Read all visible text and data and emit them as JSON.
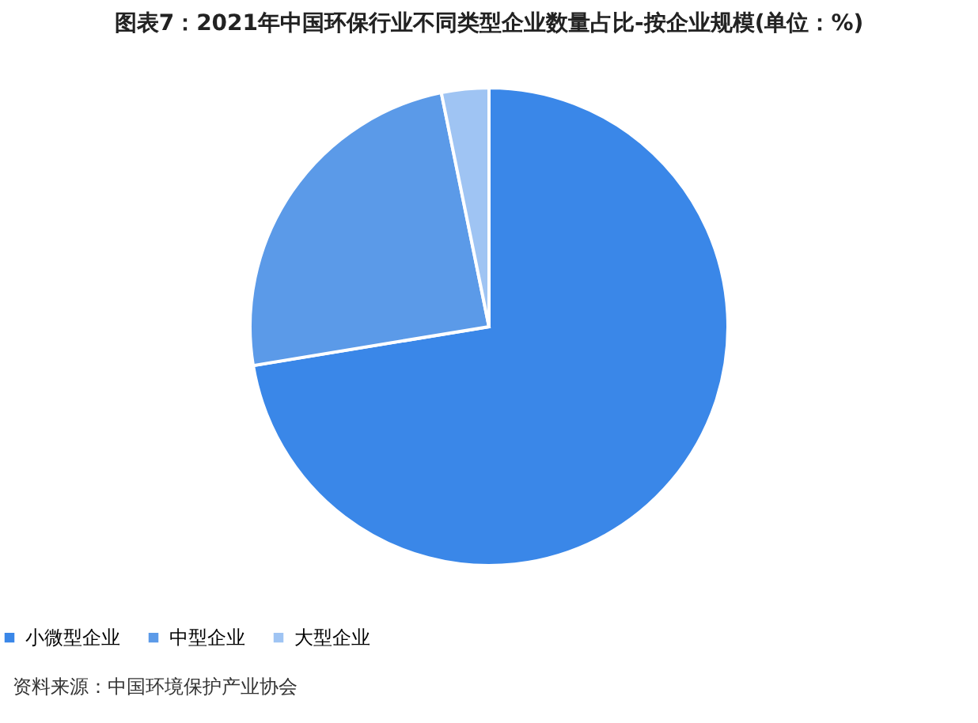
{
  "chart_data": {
    "type": "pie",
    "title": "图表7：2021年中国环保行业不同类型企业数量占比-按企业规模(单位：%)",
    "categories": [
      "小微型企业",
      "中型企业",
      "大型企业"
    ],
    "values": [
      72.4,
      24.4,
      3.2
    ],
    "colors": [
      "#3a87e8",
      "#5b9ae8",
      "#9fc4f3"
    ],
    "legend": "bottom",
    "annotations": [
      "资料来源：中国环境保护产业协会"
    ]
  }
}
